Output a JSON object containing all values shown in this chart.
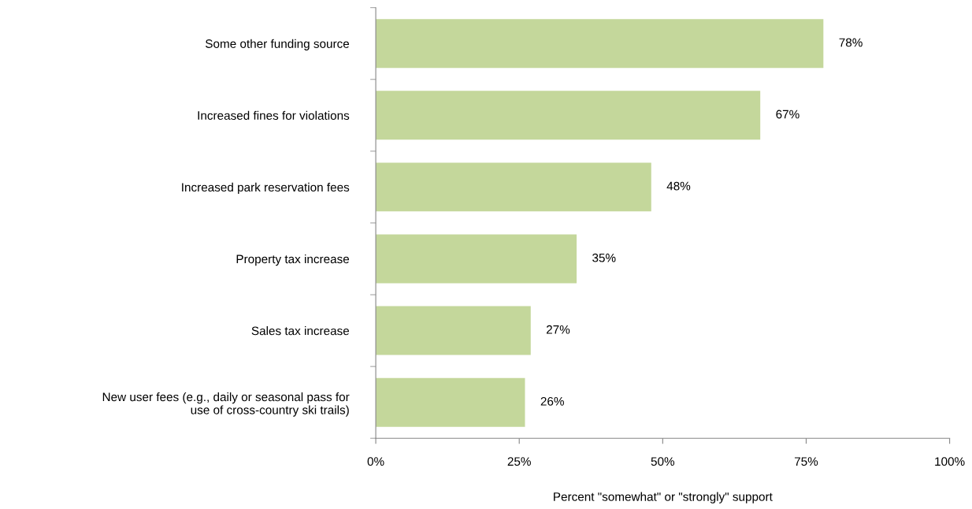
{
  "chart_data": {
    "type": "bar",
    "orientation": "horizontal",
    "xlabel": "Percent \"somewhat\" or \"strongly\" support",
    "categories": [
      "Some other funding source",
      "Increased fines for violations",
      "Increased park reservation fees",
      "Property tax increase",
      "Sales tax increase",
      "New user fees (e.g., daily or seasonal pass for\nuse of cross-country ski trails)"
    ],
    "values": [
      78,
      67,
      48,
      35,
      27,
      26
    ],
    "value_labels": [
      "78%",
      "67%",
      "48%",
      "35%",
      "27%",
      "26%"
    ],
    "color": "#c4d79b",
    "xlim": [
      0,
      100
    ],
    "xticks": [
      {
        "value": 0,
        "label": "0%"
      },
      {
        "value": 25,
        "label": "25%"
      },
      {
        "value": 50,
        "label": "50%"
      },
      {
        "value": 75,
        "label": "75%"
      },
      {
        "value": 100,
        "label": "100%"
      }
    ],
    "grid": false,
    "legend": false
  }
}
